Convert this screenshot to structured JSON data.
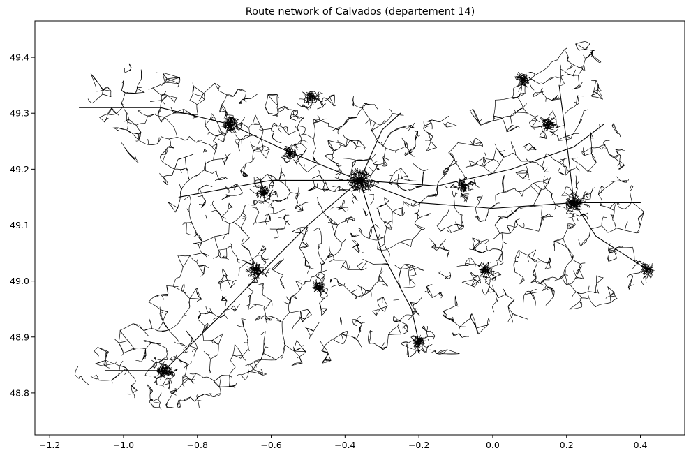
{
  "chart_data": {
    "type": "map",
    "title": "Route network of Calvados (departement 14)",
    "xlabel": "",
    "ylabel": "",
    "xlim": [
      -1.24,
      0.52
    ],
    "ylim": [
      48.725,
      49.465
    ],
    "xticks": [
      -1.2,
      -1.0,
      -0.8,
      -0.6,
      -0.4,
      -0.2,
      0.0,
      0.2,
      0.4
    ],
    "xtick_labels": [
      "−1.2",
      "−1.0",
      "−0.8",
      "−0.6",
      "−0.4",
      "−0.2",
      "0.0",
      "0.2",
      "0.4"
    ],
    "yticks": [
      48.8,
      48.9,
      49.0,
      49.1,
      49.2,
      49.3,
      49.4
    ],
    "ytick_labels": [
      "48.8",
      "48.9",
      "49.0",
      "49.1",
      "49.2",
      "49.3",
      "49.4"
    ],
    "grid": false,
    "colors": {
      "road": "#000000",
      "background": "#ffffff"
    },
    "boundary": [
      [
        -1.12,
        49.39
      ],
      [
        -0.98,
        49.39
      ],
      [
        -0.85,
        49.37
      ],
      [
        -0.72,
        49.35
      ],
      [
        -0.6,
        49.34
      ],
      [
        -0.47,
        49.34
      ],
      [
        -0.37,
        49.33
      ],
      [
        -0.28,
        49.31
      ],
      [
        -0.22,
        49.29
      ],
      [
        -0.15,
        49.29
      ],
      [
        -0.05,
        49.31
      ],
      [
        0.05,
        49.34
      ],
      [
        0.12,
        49.39
      ],
      [
        0.2,
        49.42
      ],
      [
        0.26,
        49.43
      ],
      [
        0.3,
        49.41
      ],
      [
        0.3,
        49.32
      ],
      [
        0.36,
        49.27
      ],
      [
        0.38,
        49.21
      ],
      [
        0.38,
        49.16
      ],
      [
        0.42,
        49.12
      ],
      [
        0.4,
        49.06
      ],
      [
        0.44,
        49.01
      ],
      [
        0.38,
        48.97
      ],
      [
        0.3,
        48.95
      ],
      [
        0.18,
        48.94
      ],
      [
        0.1,
        48.93
      ],
      [
        0.0,
        48.92
      ],
      [
        -0.08,
        48.87
      ],
      [
        -0.18,
        48.86
      ],
      [
        -0.3,
        48.87
      ],
      [
        -0.38,
        48.86
      ],
      [
        -0.5,
        48.85
      ],
      [
        -0.6,
        48.83
      ],
      [
        -0.72,
        48.8
      ],
      [
        -0.8,
        48.77
      ],
      [
        -0.88,
        48.76
      ],
      [
        -0.97,
        48.78
      ],
      [
        -1.05,
        48.8
      ],
      [
        -1.16,
        48.83
      ],
      [
        -1.1,
        48.86
      ],
      [
        -1.02,
        48.92
      ],
      [
        -0.92,
        48.97
      ],
      [
        -0.86,
        49.03
      ],
      [
        -0.84,
        49.1
      ],
      [
        -0.9,
        49.16
      ],
      [
        -0.98,
        49.22
      ],
      [
        -1.06,
        49.26
      ],
      [
        -1.12,
        49.3
      ],
      [
        -1.1,
        49.35
      ]
    ],
    "hubs": [
      {
        "x": -0.36,
        "y": 49.18,
        "size": 5
      },
      {
        "x": -0.71,
        "y": 49.28,
        "size": 2
      },
      {
        "x": 0.22,
        "y": 49.14,
        "size": 2
      },
      {
        "x": -0.89,
        "y": 48.84,
        "size": 2
      },
      {
        "x": -0.2,
        "y": 48.89,
        "size": 1
      },
      {
        "x": 0.15,
        "y": 49.28,
        "size": 1
      },
      {
        "x": 0.08,
        "y": 49.36,
        "size": 1.5
      },
      {
        "x": -0.64,
        "y": 49.02,
        "size": 1
      },
      {
        "x": -0.08,
        "y": 49.17,
        "size": 1
      },
      {
        "x": -0.47,
        "y": 48.99,
        "size": 1
      },
      {
        "x": 0.42,
        "y": 49.02,
        "size": 1
      },
      {
        "x": -0.55,
        "y": 49.23,
        "size": 1
      },
      {
        "x": -0.49,
        "y": 49.33,
        "size": 1
      },
      {
        "x": -0.02,
        "y": 49.02,
        "size": 1
      },
      {
        "x": -0.62,
        "y": 49.16,
        "size": 1
      }
    ],
    "major_roads": [
      [
        [
          -1.12,
          49.31
        ],
        [
          -0.9,
          49.31
        ],
        [
          -0.71,
          49.28
        ],
        [
          -0.55,
          49.23
        ],
        [
          -0.36,
          49.18
        ],
        [
          -0.15,
          49.17
        ],
        [
          0.05,
          49.2
        ],
        [
          0.22,
          49.24
        ],
        [
          0.3,
          49.28
        ]
      ],
      [
        [
          -0.36,
          49.18
        ],
        [
          -0.3,
          49.05
        ],
        [
          -0.22,
          48.95
        ],
        [
          -0.2,
          48.89
        ]
      ],
      [
        [
          -0.36,
          49.18
        ],
        [
          -0.2,
          49.14
        ],
        [
          0.0,
          49.13
        ],
        [
          0.22,
          49.14
        ],
        [
          0.4,
          49.14
        ]
      ],
      [
        [
          -0.36,
          49.18
        ],
        [
          -0.5,
          49.1
        ],
        [
          -0.62,
          49.02
        ],
        [
          -0.75,
          48.93
        ],
        [
          -0.89,
          48.84
        ]
      ],
      [
        [
          0.18,
          49.35
        ],
        [
          0.2,
          49.25
        ],
        [
          0.22,
          49.14
        ],
        [
          0.28,
          49.08
        ],
        [
          0.42,
          49.02
        ]
      ],
      [
        [
          -0.36,
          49.18
        ],
        [
          -0.3,
          49.27
        ],
        [
          -0.25,
          49.3
        ]
      ],
      [
        [
          -0.89,
          48.84
        ],
        [
          -1.05,
          48.84
        ]
      ],
      [
        [
          -0.36,
          49.18
        ],
        [
          -0.6,
          49.18
        ],
        [
          -0.85,
          49.15
        ]
      ]
    ]
  }
}
